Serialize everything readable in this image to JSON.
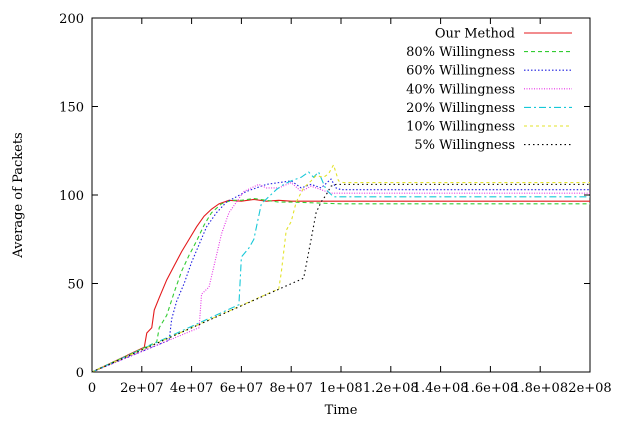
{
  "chart_data": {
    "type": "line",
    "title": "",
    "xlabel": "Time",
    "ylabel": "Average of Packets",
    "xlim": [
      0,
      200000000
    ],
    "ylim": [
      0,
      200
    ],
    "x_ticks": [
      0,
      20000000,
      40000000,
      60000000,
      80000000,
      100000000,
      120000000,
      140000000,
      160000000,
      180000000,
      200000000
    ],
    "x_tick_labels": [
      "0",
      "2e+07",
      "4e+07",
      "6e+07",
      "8e+07",
      "1e+08",
      "1.2e+08",
      "1.4e+08",
      "1.6e+08",
      "1.8e+08",
      "2e+08"
    ],
    "y_ticks": [
      0,
      50,
      100,
      150,
      200
    ],
    "y_tick_labels": [
      "0",
      "50",
      "100",
      "150",
      "200"
    ],
    "grid": false,
    "legend_position": "top-right",
    "series": [
      {
        "name": "Our Method",
        "color": "#e41a1c",
        "dash": "solid",
        "points": [
          [
            0,
            0
          ],
          [
            21000000,
            14
          ],
          [
            22000000,
            22
          ],
          [
            24000000,
            25
          ],
          [
            25000000,
            35
          ],
          [
            27000000,
            42
          ],
          [
            30000000,
            52
          ],
          [
            33000000,
            60
          ],
          [
            36000000,
            68
          ],
          [
            39000000,
            75
          ],
          [
            42000000,
            82
          ],
          [
            45000000,
            88
          ],
          [
            48000000,
            92
          ],
          [
            51000000,
            95
          ],
          [
            55000000,
            97
          ],
          [
            60000000,
            96.5
          ],
          [
            65000000,
            97.5
          ],
          [
            70000000,
            96.5
          ],
          [
            75000000,
            97
          ],
          [
            80000000,
            96.5
          ],
          [
            90000000,
            96.5
          ],
          [
            100000000,
            96.5
          ],
          [
            200000000,
            96.5
          ]
        ]
      },
      {
        "name": "80% Willingness",
        "color": "#33cc33",
        "dash": "dashed",
        "points": [
          [
            0,
            0
          ],
          [
            26000000,
            17
          ],
          [
            27000000,
            25
          ],
          [
            30000000,
            32
          ],
          [
            33000000,
            45
          ],
          [
            36000000,
            57
          ],
          [
            39000000,
            66
          ],
          [
            42000000,
            74
          ],
          [
            45000000,
            83
          ],
          [
            48000000,
            90
          ],
          [
            52000000,
            95
          ],
          [
            56000000,
            97
          ],
          [
            60000000,
            97
          ],
          [
            65000000,
            98
          ],
          [
            70000000,
            97
          ],
          [
            75000000,
            96
          ],
          [
            80000000,
            96
          ],
          [
            90000000,
            95.5
          ],
          [
            100000000,
            95
          ],
          [
            200000000,
            95
          ]
        ]
      },
      {
        "name": "60% Willingness",
        "color": "#1e1ee0",
        "dash": "dotted",
        "points": [
          [
            0,
            0
          ],
          [
            31000000,
            18
          ],
          [
            32000000,
            30
          ],
          [
            34000000,
            40
          ],
          [
            37000000,
            50
          ],
          [
            40000000,
            62
          ],
          [
            43000000,
            72
          ],
          [
            46000000,
            82
          ],
          [
            50000000,
            90
          ],
          [
            54000000,
            96
          ],
          [
            58000000,
            99
          ],
          [
            62000000,
            102
          ],
          [
            66000000,
            104
          ],
          [
            70000000,
            106
          ],
          [
            75000000,
            107
          ],
          [
            80000000,
            108
          ],
          [
            84000000,
            104
          ],
          [
            88000000,
            106
          ],
          [
            92000000,
            104
          ],
          [
            96000000,
            109
          ],
          [
            98000000,
            104
          ],
          [
            100000000,
            103
          ],
          [
            200000000,
            103
          ]
        ]
      },
      {
        "name": "40% Willingness",
        "color": "#e633e6",
        "dash": "densedot",
        "points": [
          [
            0,
            0
          ],
          [
            43000000,
            25
          ],
          [
            44000000,
            44
          ],
          [
            47000000,
            48
          ],
          [
            49000000,
            60
          ],
          [
            52000000,
            78
          ],
          [
            55000000,
            90
          ],
          [
            58000000,
            96
          ],
          [
            61000000,
            102
          ],
          [
            64000000,
            104
          ],
          [
            67000000,
            106
          ],
          [
            70000000,
            104
          ],
          [
            75000000,
            104
          ],
          [
            80000000,
            107
          ],
          [
            84000000,
            102
          ],
          [
            88000000,
            105
          ],
          [
            92000000,
            103
          ],
          [
            96000000,
            101
          ],
          [
            100000000,
            101
          ],
          [
            200000000,
            101
          ]
        ]
      },
      {
        "name": "20% Willingness",
        "color": "#17c8d8",
        "dash": "dashdot",
        "points": [
          [
            0,
            0
          ],
          [
            59000000,
            38
          ],
          [
            60000000,
            65
          ],
          [
            63000000,
            70
          ],
          [
            65000000,
            75
          ],
          [
            68000000,
            95
          ],
          [
            71000000,
            99
          ],
          [
            74000000,
            103
          ],
          [
            77000000,
            106
          ],
          [
            80000000,
            108
          ],
          [
            84000000,
            110
          ],
          [
            87000000,
            113
          ],
          [
            89000000,
            110
          ],
          [
            91000000,
            113
          ],
          [
            94000000,
            103
          ],
          [
            97000000,
            99
          ],
          [
            100000000,
            99
          ],
          [
            200000000,
            99
          ]
        ]
      },
      {
        "name": "10% Willingness",
        "color": "#e3e32a",
        "dash": "longdash",
        "points": [
          [
            0,
            0
          ],
          [
            75000000,
            47
          ],
          [
            76000000,
            56
          ],
          [
            78000000,
            80
          ],
          [
            80000000,
            85
          ],
          [
            82000000,
            96
          ],
          [
            85000000,
            104
          ],
          [
            88000000,
            108
          ],
          [
            90000000,
            111
          ],
          [
            93000000,
            110
          ],
          [
            95000000,
            112
          ],
          [
            97000000,
            117
          ],
          [
            99000000,
            108
          ],
          [
            101000000,
            107
          ],
          [
            200000000,
            107
          ]
        ]
      },
      {
        "name": "5% Willingness",
        "color": "#000000",
        "dash": "dashdotblack",
        "points": [
          [
            0,
            0
          ],
          [
            85000000,
            53
          ],
          [
            88000000,
            75
          ],
          [
            90000000,
            90
          ],
          [
            92000000,
            96
          ],
          [
            94000000,
            100
          ],
          [
            96000000,
            105
          ],
          [
            98000000,
            106
          ],
          [
            100000000,
            106
          ],
          [
            200000000,
            106
          ]
        ]
      }
    ]
  }
}
